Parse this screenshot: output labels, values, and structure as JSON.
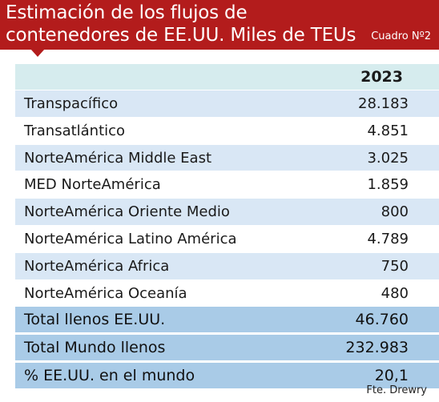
{
  "header": {
    "title": "Estimación de los flujos de\ncontenedores de EE.UU. Miles de TEUs",
    "table_number": "Cuadro Nº2"
  },
  "table": {
    "column_header": "2023",
    "rows": [
      {
        "label": "Transpacífico",
        "value": "28.183"
      },
      {
        "label": "Transatlántico",
        "value": "4.851"
      },
      {
        "label": "NorteAmérica Middle East",
        "value": "3.025"
      },
      {
        "label": "MED NorteAmérica",
        "value": "1.859"
      },
      {
        "label": "NorteAmérica Oriente Medio",
        "value": "800"
      },
      {
        "label": "NorteAmérica Latino América",
        "value": "4.789"
      },
      {
        "label": "NorteAmérica Africa",
        "value": "750"
      },
      {
        "label": "NorteAmérica Oceanía",
        "value": "480"
      }
    ],
    "totals": [
      {
        "label": "Total llenos EE.UU.",
        "value": "46.760"
      },
      {
        "label": "Total Mundo llenos",
        "value": "232.983"
      },
      {
        "label": "% EE.UU. en el mundo",
        "value": "20,1"
      }
    ]
  },
  "source": "Fte. Drewry",
  "colors": {
    "header_red": "#b31c1c",
    "year_band": "#d6ecee",
    "row_blue": "#d9e7f5",
    "total_blue": "#a9cbe7"
  }
}
